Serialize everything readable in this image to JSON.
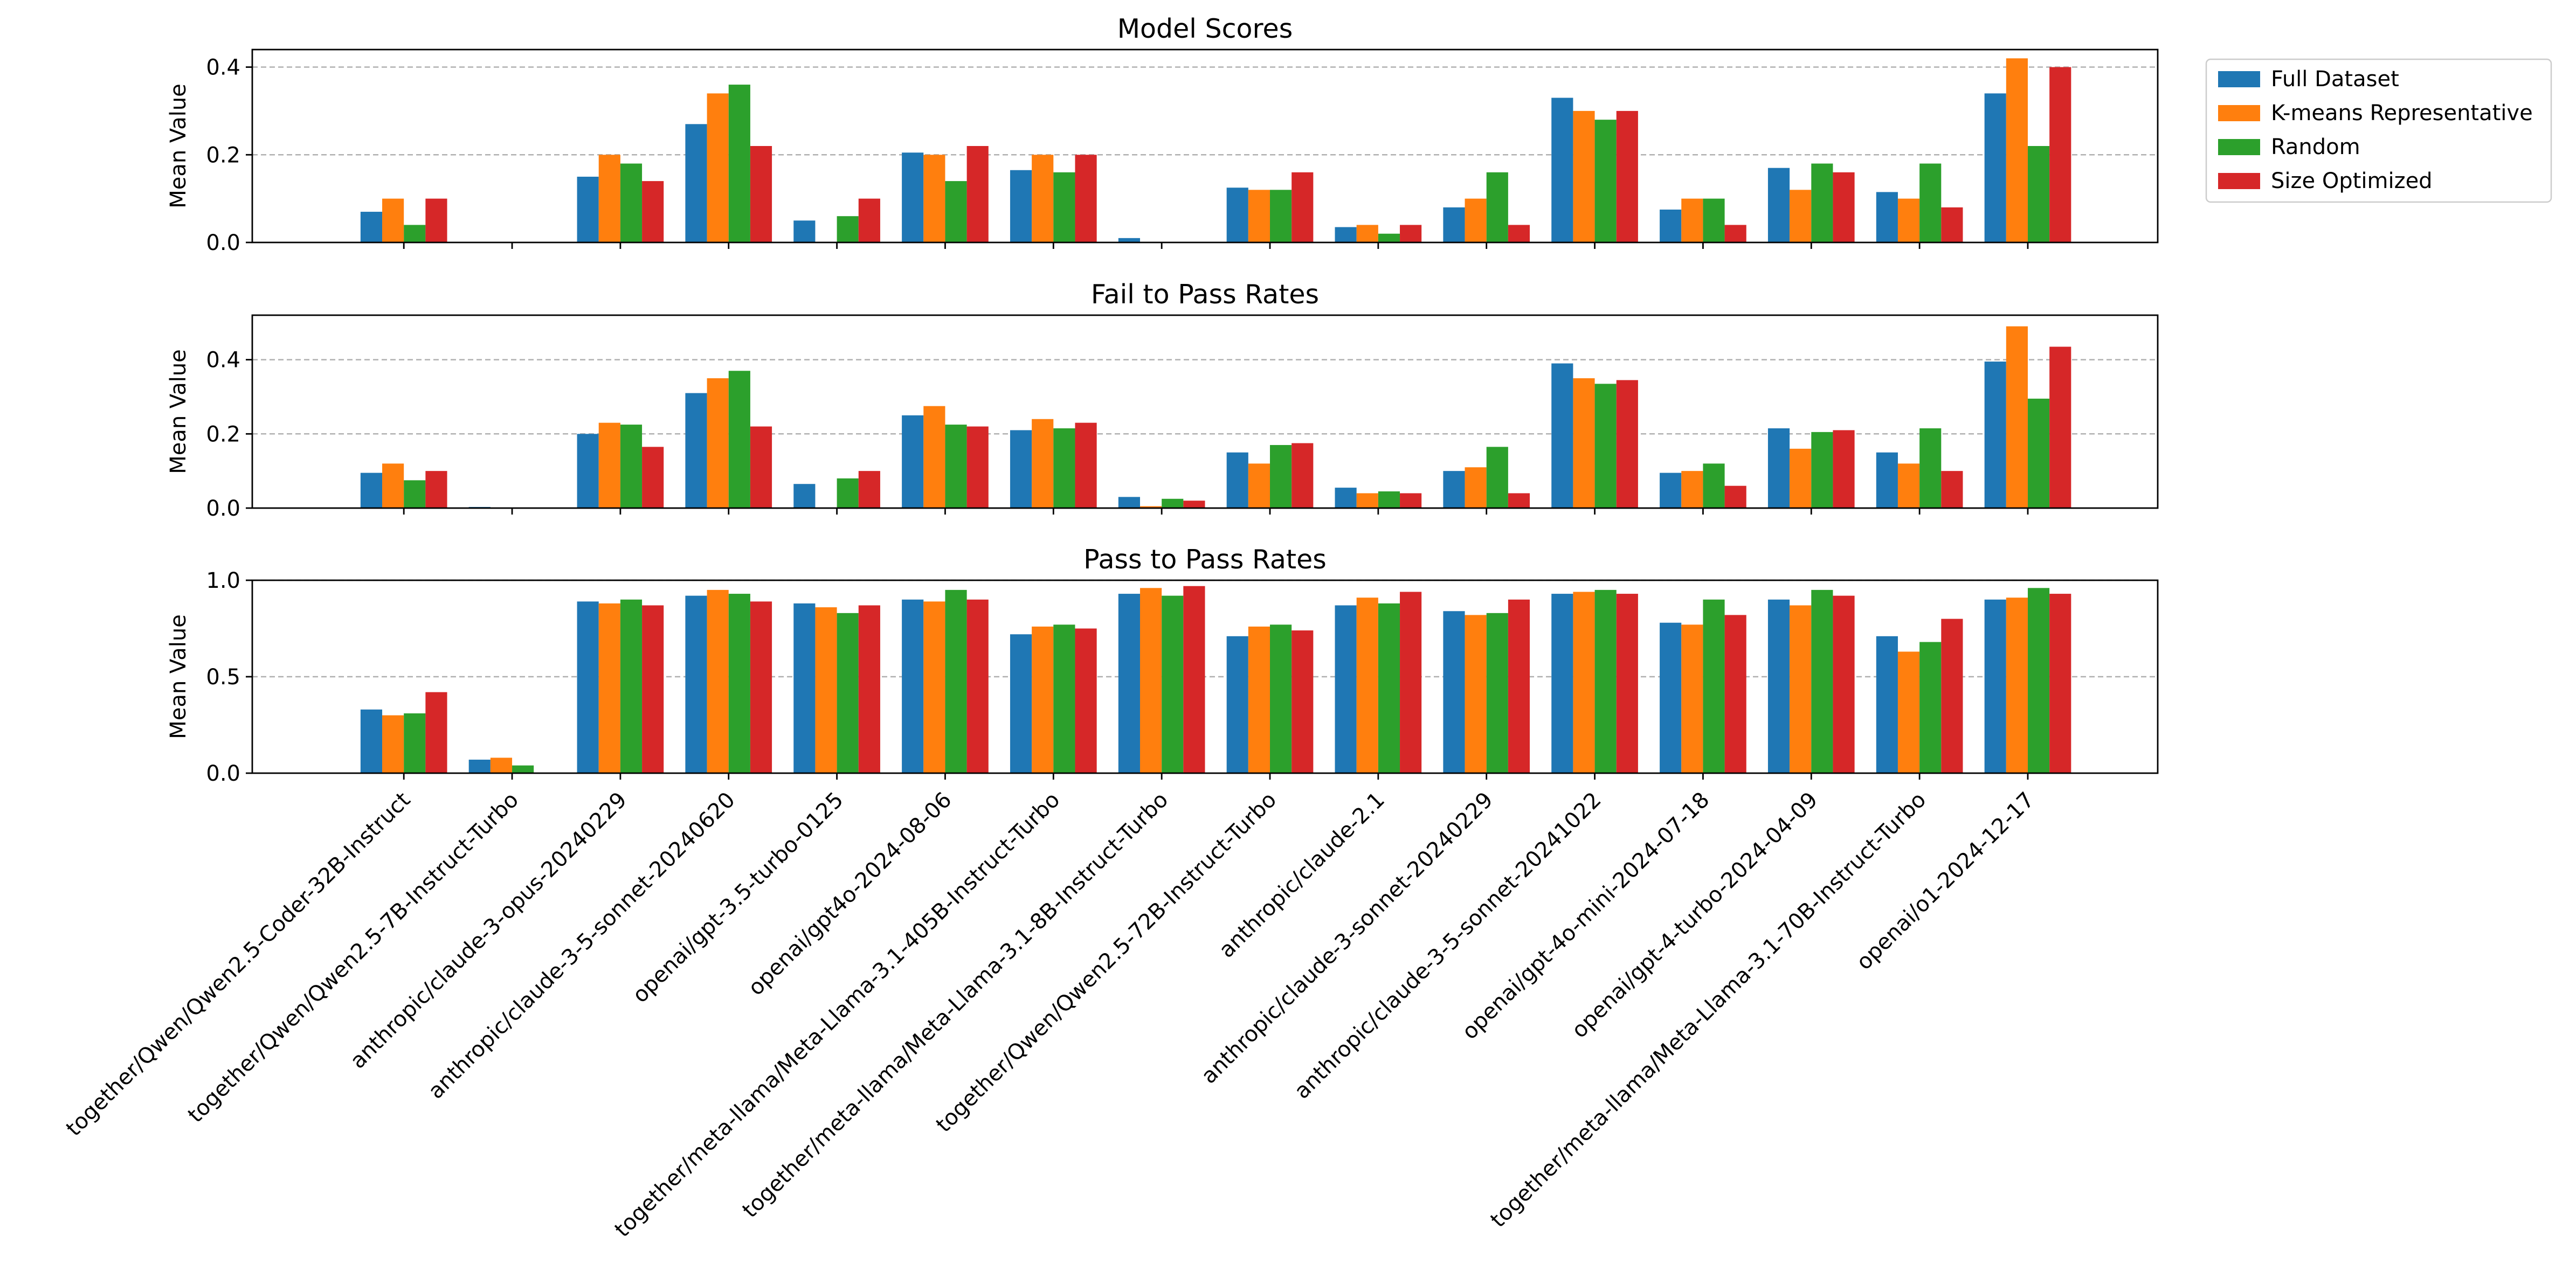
{
  "chart_data": {
    "type": "bar",
    "categories": [
      "together/Qwen/Qwen2.5-Coder-32B-Instruct",
      "together/Qwen/Qwen2.5-7B-Instruct-Turbo",
      "anthropic/claude-3-opus-20240229",
      "anthropic/claude-3-5-sonnet-20240620",
      "openai/gpt-3.5-turbo-0125",
      "openai/gpt4o-2024-08-06",
      "together/meta-llama/Meta-Llama-3.1-405B-Instruct-Turbo",
      "together/meta-llama/Meta-Llama-3.1-8B-Instruct-Turbo",
      "together/Qwen/Qwen2.5-72B-Instruct-Turbo",
      "anthropic/claude-2.1",
      "anthropic/claude-3-sonnet-20240229",
      "anthropic/claude-3-5-sonnet-20241022",
      "openai/gpt-4o-mini-2024-07-18",
      "openai/gpt-4-turbo-2024-04-09",
      "together/meta-llama/Meta-Llama-3.1-70B-Instruct-Turbo",
      "openai/o1-2024-12-17"
    ],
    "legend": {
      "placement": "outside-top-right",
      "entries": [
        "Full Dataset",
        "K-means Representative",
        "Random",
        "Size Optimized"
      ]
    },
    "colors": [
      "#1f77b4",
      "#ff7f0e",
      "#2ca02c",
      "#d62728"
    ],
    "panels": [
      {
        "title": "Model Scores",
        "ylabel": "Mean Value",
        "ylim": [
          0,
          0.44
        ],
        "yticks": [
          0.0,
          0.2,
          0.4
        ],
        "ytick_labels": [
          "0.0",
          "0.2",
          "0.4"
        ],
        "grid": "y-dashed",
        "series": [
          {
            "name": "Full Dataset",
            "values": [
              0.07,
              0.0,
              0.15,
              0.27,
              0.05,
              0.205,
              0.165,
              0.01,
              0.125,
              0.035,
              0.08,
              0.33,
              0.075,
              0.17,
              0.115,
              0.34
            ]
          },
          {
            "name": "K-means Representative",
            "values": [
              0.1,
              0.0,
              0.2,
              0.34,
              0.0,
              0.2,
              0.2,
              0.0,
              0.12,
              0.04,
              0.1,
              0.3,
              0.1,
              0.12,
              0.1,
              0.42
            ]
          },
          {
            "name": "Random",
            "values": [
              0.04,
              0.0,
              0.18,
              0.36,
              0.06,
              0.14,
              0.16,
              0.0,
              0.12,
              0.02,
              0.16,
              0.28,
              0.1,
              0.18,
              0.18,
              0.22
            ]
          },
          {
            "name": "Size Optimized",
            "values": [
              0.1,
              0.0,
              0.14,
              0.22,
              0.1,
              0.22,
              0.2,
              0.0,
              0.16,
              0.04,
              0.04,
              0.3,
              0.04,
              0.16,
              0.08,
              0.4
            ]
          }
        ]
      },
      {
        "title": "Fail to Pass Rates",
        "ylabel": "Mean Value",
        "ylim": [
          0,
          0.52
        ],
        "yticks": [
          0.0,
          0.2,
          0.4
        ],
        "ytick_labels": [
          "0.0",
          "0.2",
          "0.4"
        ],
        "grid": "y-dashed",
        "series": [
          {
            "name": "Full Dataset",
            "values": [
              0.095,
              0.003,
              0.2,
              0.31,
              0.065,
              0.25,
              0.21,
              0.03,
              0.15,
              0.055,
              0.1,
              0.39,
              0.095,
              0.215,
              0.15,
              0.395
            ]
          },
          {
            "name": "K-means Representative",
            "values": [
              0.12,
              0.0,
              0.23,
              0.35,
              0.0,
              0.275,
              0.24,
              0.005,
              0.12,
              0.04,
              0.11,
              0.35,
              0.1,
              0.16,
              0.12,
              0.49
            ]
          },
          {
            "name": "Random",
            "values": [
              0.075,
              0.0,
              0.225,
              0.37,
              0.08,
              0.225,
              0.215,
              0.025,
              0.17,
              0.045,
              0.165,
              0.335,
              0.12,
              0.205,
              0.215,
              0.295
            ]
          },
          {
            "name": "Size Optimized",
            "values": [
              0.1,
              0.0,
              0.165,
              0.22,
              0.1,
              0.22,
              0.23,
              0.02,
              0.175,
              0.04,
              0.04,
              0.345,
              0.06,
              0.21,
              0.1,
              0.435
            ]
          }
        ]
      },
      {
        "title": "Pass to Pass Rates",
        "ylabel": "Mean Value",
        "ylim": [
          0,
          1.0
        ],
        "yticks": [
          0.0,
          0.5,
          1.0
        ],
        "ytick_labels": [
          "0.0",
          "0.5",
          "1.0"
        ],
        "grid": "y-dashed",
        "series": [
          {
            "name": "Full Dataset",
            "values": [
              0.33,
              0.07,
              0.89,
              0.92,
              0.88,
              0.9,
              0.72,
              0.93,
              0.71,
              0.87,
              0.84,
              0.93,
              0.78,
              0.9,
              0.71,
              0.9
            ]
          },
          {
            "name": "K-means Representative",
            "values": [
              0.3,
              0.08,
              0.88,
              0.95,
              0.86,
              0.89,
              0.76,
              0.96,
              0.76,
              0.91,
              0.82,
              0.94,
              0.77,
              0.87,
              0.63,
              0.91
            ]
          },
          {
            "name": "Random",
            "values": [
              0.31,
              0.04,
              0.9,
              0.93,
              0.83,
              0.95,
              0.77,
              0.92,
              0.77,
              0.88,
              0.83,
              0.95,
              0.9,
              0.95,
              0.68,
              0.96
            ]
          },
          {
            "name": "Size Optimized",
            "values": [
              0.42,
              0.0,
              0.87,
              0.89,
              0.87,
              0.9,
              0.75,
              0.97,
              0.74,
              0.94,
              0.9,
              0.93,
              0.82,
              0.92,
              0.8,
              0.93
            ]
          }
        ]
      }
    ]
  }
}
